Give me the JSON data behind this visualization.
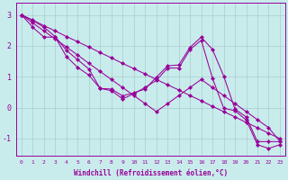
{
  "xlabel": "Windchill (Refroidissement éolien,°C)",
  "xlim": [
    -0.5,
    23.5
  ],
  "ylim": [
    -1.55,
    3.4
  ],
  "yticks": [
    -1,
    0,
    1,
    2,
    3
  ],
  "xticks": [
    0,
    1,
    2,
    3,
    4,
    5,
    6,
    7,
    8,
    9,
    10,
    11,
    12,
    13,
    14,
    15,
    16,
    17,
    18,
    19,
    20,
    21,
    22,
    23
  ],
  "background_color": "#c8ecec",
  "line_color": "#990099",
  "grid_color": "#aacccc",
  "series": [
    [
      3.0,
      2.82,
      2.6,
      2.3,
      1.85,
      1.55,
      1.25,
      0.62,
      0.6,
      0.38,
      0.48,
      0.6,
      0.98,
      1.35,
      1.38,
      1.95,
      2.28,
      1.88,
      1.02,
      -0.05,
      -0.3,
      -1.1,
      -1.1,
      -1.1
    ],
    [
      3.0,
      2.6,
      2.28,
      2.28,
      1.65,
      1.3,
      1.05,
      0.62,
      0.55,
      0.28,
      0.45,
      0.65,
      0.88,
      1.28,
      1.28,
      1.88,
      2.18,
      0.95,
      -0.02,
      -0.1,
      -0.4,
      -1.2,
      -1.32,
      -1.2
    ],
    [
      3.0,
      2.74,
      2.48,
      2.22,
      1.96,
      1.7,
      1.43,
      1.17,
      0.91,
      0.65,
      0.39,
      0.13,
      -0.13,
      0.13,
      0.39,
      0.65,
      0.91,
      0.65,
      0.39,
      0.13,
      -0.13,
      -0.39,
      -0.65,
      -1.09
    ],
    [
      3.0,
      2.83,
      2.65,
      2.48,
      2.3,
      2.13,
      1.96,
      1.78,
      1.61,
      1.43,
      1.26,
      1.09,
      0.91,
      0.74,
      0.57,
      0.39,
      0.22,
      0.04,
      -0.13,
      -0.3,
      -0.48,
      -0.65,
      -0.83,
      -1.0
    ]
  ]
}
